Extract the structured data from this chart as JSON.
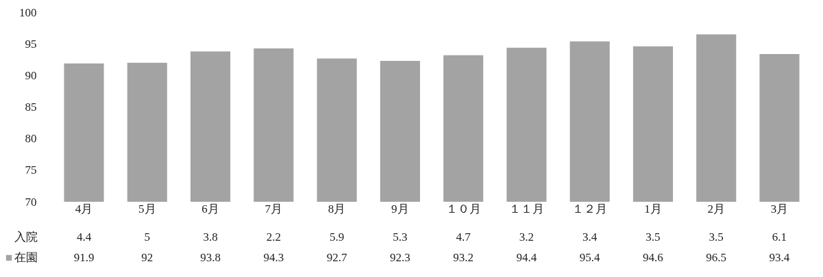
{
  "chart_data": {
    "type": "bar",
    "categories": [
      "4月",
      "5月",
      "6月",
      "7月",
      "8月",
      "9月",
      "１０月",
      "１１月",
      "１２月",
      "1月",
      "2月",
      "3月"
    ],
    "series": [
      {
        "name": "入院",
        "values": [
          null,
          null,
          null,
          null,
          null,
          null,
          null,
          null,
          null,
          null,
          null,
          null
        ],
        "value_labels": [
          "4.4",
          "5",
          "3.8",
          "2.2",
          "5.9",
          "5.3",
          "4.7",
          "3.2",
          "3.4",
          "3.5",
          "3.5",
          "6.1"
        ]
      },
      {
        "name": "在園",
        "color": "#a3a3a3",
        "values": [
          91.9,
          92,
          93.8,
          94.3,
          92.7,
          92.3,
          93.2,
          94.4,
          95.4,
          94.6,
          96.5,
          93.4
        ]
      }
    ],
    "ylim": [
      70,
      100
    ],
    "yticks": [
      70,
      75,
      80,
      85,
      90,
      95,
      100
    ],
    "grid": false,
    "data_labels": true
  }
}
